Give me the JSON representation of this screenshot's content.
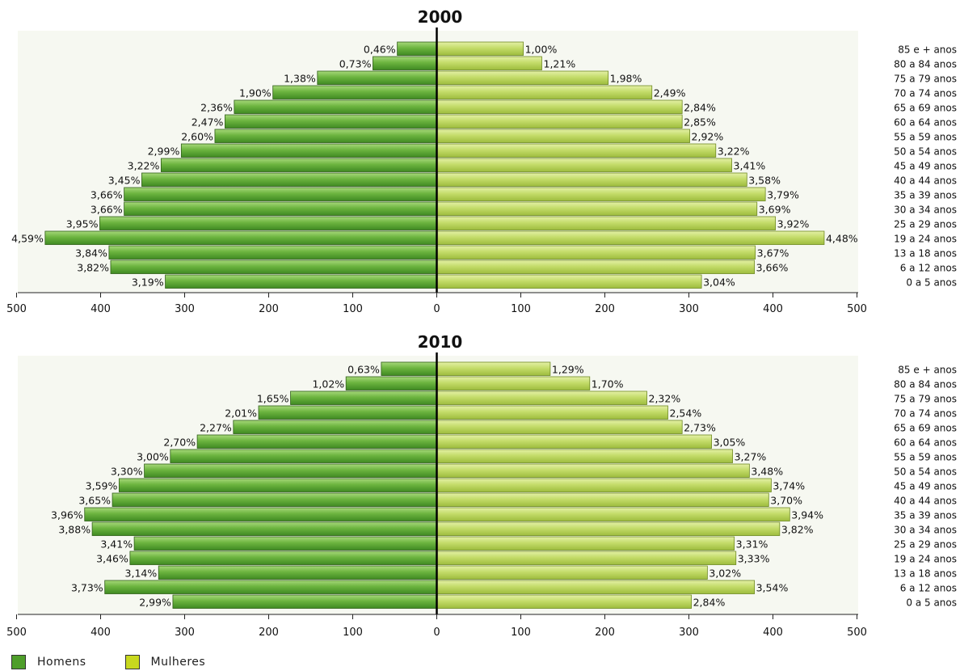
{
  "chart_data": [
    {
      "type": "bar",
      "orientation": "horizontal-population-pyramid",
      "title": "2000",
      "categories": [
        "0 a 5 anos",
        "6 a 12 anos",
        "13 a 18 anos",
        "19 a 24 anos",
        "25 a 29 anos",
        "30 a 34 anos",
        "35 a 39 anos",
        "40 a 44 anos",
        "45 a 49 anos",
        "50 a 54 anos",
        "55 a 59 anos",
        "60 a 64 anos",
        "65 a 69 anos",
        "70 a 74 anos",
        "75 a 79 anos",
        "80 a 84 anos",
        "85 e + anos"
      ],
      "series": [
        {
          "name": "Homens",
          "values": [
            323,
            388,
            390,
            466,
            401,
            372,
            372,
            351,
            328,
            304,
            264,
            252,
            241,
            195,
            142,
            76,
            47
          ],
          "labels": [
            "3,19%",
            "3,82%",
            "3,84%",
            "4,59%",
            "3,95%",
            "3,66%",
            "3,66%",
            "3,45%",
            "3,22%",
            "2,99%",
            "2,60%",
            "2,47%",
            "2,36%",
            "1,90%",
            "1,38%",
            "0,73%",
            "0,46%"
          ]
        },
        {
          "name": "Mulheres",
          "values": [
            315,
            378,
            379,
            461,
            403,
            381,
            391,
            369,
            351,
            332,
            301,
            292,
            292,
            256,
            204,
            125,
            103
          ],
          "labels": [
            "3,04%",
            "3,66%",
            "3,67%",
            "4,48%",
            "3,92%",
            "3,69%",
            "3,79%",
            "3,58%",
            "3,41%",
            "3,22%",
            "2,92%",
            "2,85%",
            "2,84%",
            "2,49%",
            "1,98%",
            "1,21%",
            "1,00%"
          ]
        }
      ],
      "xlim": [
        -500,
        500
      ],
      "xticks": [
        "500",
        "400",
        "300",
        "200",
        "100",
        "0",
        "100",
        "200",
        "300",
        "400",
        "500"
      ],
      "xlabel": "",
      "ylabel": ""
    },
    {
      "type": "bar",
      "orientation": "horizontal-population-pyramid",
      "title": "2010",
      "categories": [
        "0 a 5 anos",
        "6 a 12 anos",
        "13 a 18 anos",
        "19 a 24 anos",
        "25 a 29 anos",
        "30 a 34 anos",
        "35 a 39 anos",
        "40 a 44 anos",
        "45 a 49 anos",
        "50 a 54 anos",
        "55 a 59 anos",
        "60 a 64 anos",
        "65 a 69 anos",
        "70 a 74 anos",
        "75 a 79 anos",
        "80 a 84 anos",
        "85 e + anos"
      ],
      "series": [
        {
          "name": "Homens",
          "values": [
            314,
            395,
            331,
            365,
            360,
            410,
            419,
            386,
            378,
            348,
            317,
            285,
            242,
            212,
            174,
            108,
            66
          ],
          "labels": [
            "2,99%",
            "3,73%",
            "3,14%",
            "3,46%",
            "3,41%",
            "3,88%",
            "3,96%",
            "3,65%",
            "3,59%",
            "3,30%",
            "3,00%",
            "2,70%",
            "2,27%",
            "2,01%",
            "1,65%",
            "1,02%",
            "0,63%"
          ]
        },
        {
          "name": "Mulheres",
          "values": [
            303,
            378,
            322,
            356,
            354,
            408,
            420,
            395,
            398,
            372,
            352,
            327,
            292,
            275,
            250,
            182,
            135
          ],
          "labels": [
            "2,84%",
            "3,54%",
            "3,02%",
            "3,33%",
            "3,31%",
            "3,82%",
            "3,94%",
            "3,70%",
            "3,74%",
            "3,48%",
            "3,27%",
            "3,05%",
            "2,73%",
            "2,54%",
            "2,32%",
            "1,70%",
            "1,29%"
          ]
        }
      ],
      "xlim": [
        -500,
        500
      ],
      "xticks": [
        "500",
        "400",
        "300",
        "200",
        "100",
        "0",
        "100",
        "200",
        "300",
        "400",
        "500"
      ],
      "xlabel": "",
      "ylabel": ""
    }
  ],
  "legend": {
    "male_label": "Homens",
    "female_label": "Mulheres"
  },
  "colors": {
    "male": "#5fa635",
    "male_light": "#96cf68",
    "male_dark": "#3e7f1d",
    "female": "#bcd65f",
    "female_light": "#dcec98",
    "female_dark": "#9cb83c",
    "plot_bg": "#f6f8f1",
    "axis": "#000000"
  }
}
